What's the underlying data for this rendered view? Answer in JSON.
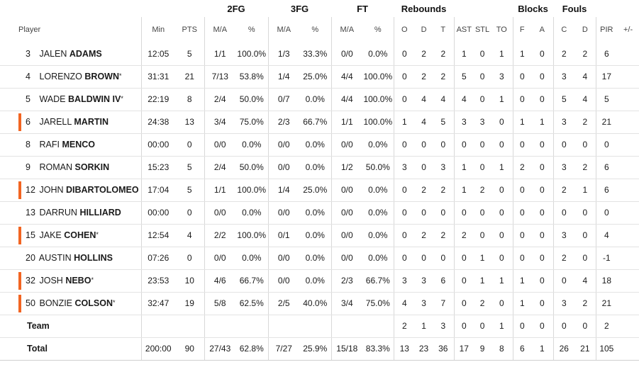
{
  "groups": {
    "fg2": "2FG",
    "fg3": "3FG",
    "ft": "FT",
    "rebounds": "Rebounds",
    "blocks": "Blocks",
    "fouls": "Fouls"
  },
  "columns": {
    "player": "Player",
    "min": "Min",
    "pts": "PTS",
    "fg2_ma": "M/A",
    "fg2_pct": "%",
    "fg3_ma": "M/A",
    "fg3_pct": "%",
    "ft_ma": "M/A",
    "ft_pct": "%",
    "o": "O",
    "d": "D",
    "t": "T",
    "ast": "AST",
    "stl": "STL",
    "to": "TO",
    "blk_f": "F",
    "blk_a": "A",
    "foul_c": "C",
    "foul_d": "D",
    "pir": "PIR",
    "pm": "+/-"
  },
  "players": [
    {
      "num": "3",
      "first": "JALEN",
      "last": "ADAMS",
      "star": "",
      "starter": false,
      "min": "12:05",
      "pts": "5",
      "fg2_ma": "1/1",
      "fg2_pct": "100.0%",
      "fg3_ma": "1/3",
      "fg3_pct": "33.3%",
      "ft_ma": "0/0",
      "ft_pct": "0.0%",
      "o": "0",
      "d": "2",
      "t": "2",
      "ast": "1",
      "stl": "0",
      "to": "1",
      "blk_f": "1",
      "blk_a": "0",
      "foul_c": "2",
      "foul_d": "2",
      "pir": "6",
      "pm": ""
    },
    {
      "num": "4",
      "first": "LORENZO",
      "last": "BROWN",
      "star": "*",
      "starter": false,
      "min": "31:31",
      "pts": "21",
      "fg2_ma": "7/13",
      "fg2_pct": "53.8%",
      "fg3_ma": "1/4",
      "fg3_pct": "25.0%",
      "ft_ma": "4/4",
      "ft_pct": "100.0%",
      "o": "0",
      "d": "2",
      "t": "2",
      "ast": "5",
      "stl": "0",
      "to": "3",
      "blk_f": "0",
      "blk_a": "0",
      "foul_c": "3",
      "foul_d": "4",
      "pir": "17",
      "pm": ""
    },
    {
      "num": "5",
      "first": "WADE",
      "last": "BALDWIN IV",
      "star": "*",
      "starter": false,
      "min": "22:19",
      "pts": "8",
      "fg2_ma": "2/4",
      "fg2_pct": "50.0%",
      "fg3_ma": "0/7",
      "fg3_pct": "0.0%",
      "ft_ma": "4/4",
      "ft_pct": "100.0%",
      "o": "0",
      "d": "4",
      "t": "4",
      "ast": "4",
      "stl": "0",
      "to": "1",
      "blk_f": "0",
      "blk_a": "0",
      "foul_c": "5",
      "foul_d": "4",
      "pir": "5",
      "pm": ""
    },
    {
      "num": "6",
      "first": "JARELL",
      "last": "MARTIN",
      "star": "",
      "starter": true,
      "min": "24:38",
      "pts": "13",
      "fg2_ma": "3/4",
      "fg2_pct": "75.0%",
      "fg3_ma": "2/3",
      "fg3_pct": "66.7%",
      "ft_ma": "1/1",
      "ft_pct": "100.0%",
      "o": "1",
      "d": "4",
      "t": "5",
      "ast": "3",
      "stl": "3",
      "to": "0",
      "blk_f": "1",
      "blk_a": "1",
      "foul_c": "3",
      "foul_d": "2",
      "pir": "21",
      "pm": ""
    },
    {
      "num": "8",
      "first": "RAFI",
      "last": "MENCO",
      "star": "",
      "starter": false,
      "min": "00:00",
      "pts": "0",
      "fg2_ma": "0/0",
      "fg2_pct": "0.0%",
      "fg3_ma": "0/0",
      "fg3_pct": "0.0%",
      "ft_ma": "0/0",
      "ft_pct": "0.0%",
      "o": "0",
      "d": "0",
      "t": "0",
      "ast": "0",
      "stl": "0",
      "to": "0",
      "blk_f": "0",
      "blk_a": "0",
      "foul_c": "0",
      "foul_d": "0",
      "pir": "0",
      "pm": ""
    },
    {
      "num": "9",
      "first": "ROMAN",
      "last": "SORKIN",
      "star": "",
      "starter": false,
      "min": "15:23",
      "pts": "5",
      "fg2_ma": "2/4",
      "fg2_pct": "50.0%",
      "fg3_ma": "0/0",
      "fg3_pct": "0.0%",
      "ft_ma": "1/2",
      "ft_pct": "50.0%",
      "o": "3",
      "d": "0",
      "t": "3",
      "ast": "1",
      "stl": "0",
      "to": "1",
      "blk_f": "2",
      "blk_a": "0",
      "foul_c": "3",
      "foul_d": "2",
      "pir": "6",
      "pm": ""
    },
    {
      "num": "12",
      "first": "JOHN",
      "last": "DIBARTOLOMEO",
      "star": "",
      "starter": true,
      "min": "17:04",
      "pts": "5",
      "fg2_ma": "1/1",
      "fg2_pct": "100.0%",
      "fg3_ma": "1/4",
      "fg3_pct": "25.0%",
      "ft_ma": "0/0",
      "ft_pct": "0.0%",
      "o": "0",
      "d": "2",
      "t": "2",
      "ast": "1",
      "stl": "2",
      "to": "0",
      "blk_f": "0",
      "blk_a": "0",
      "foul_c": "2",
      "foul_d": "1",
      "pir": "6",
      "pm": ""
    },
    {
      "num": "13",
      "first": "DARRUN",
      "last": "HILLIARD",
      "star": "",
      "starter": false,
      "min": "00:00",
      "pts": "0",
      "fg2_ma": "0/0",
      "fg2_pct": "0.0%",
      "fg3_ma": "0/0",
      "fg3_pct": "0.0%",
      "ft_ma": "0/0",
      "ft_pct": "0.0%",
      "o": "0",
      "d": "0",
      "t": "0",
      "ast": "0",
      "stl": "0",
      "to": "0",
      "blk_f": "0",
      "blk_a": "0",
      "foul_c": "0",
      "foul_d": "0",
      "pir": "0",
      "pm": ""
    },
    {
      "num": "15",
      "first": "JAKE",
      "last": "COHEN",
      "star": "*",
      "starter": true,
      "min": "12:54",
      "pts": "4",
      "fg2_ma": "2/2",
      "fg2_pct": "100.0%",
      "fg3_ma": "0/1",
      "fg3_pct": "0.0%",
      "ft_ma": "0/0",
      "ft_pct": "0.0%",
      "o": "0",
      "d": "2",
      "t": "2",
      "ast": "2",
      "stl": "0",
      "to": "0",
      "blk_f": "0",
      "blk_a": "0",
      "foul_c": "3",
      "foul_d": "0",
      "pir": "4",
      "pm": ""
    },
    {
      "num": "20",
      "first": "AUSTIN",
      "last": "HOLLINS",
      "star": "",
      "starter": false,
      "min": "07:26",
      "pts": "0",
      "fg2_ma": "0/0",
      "fg2_pct": "0.0%",
      "fg3_ma": "0/0",
      "fg3_pct": "0.0%",
      "ft_ma": "0/0",
      "ft_pct": "0.0%",
      "o": "0",
      "d": "0",
      "t": "0",
      "ast": "0",
      "stl": "1",
      "to": "0",
      "blk_f": "0",
      "blk_a": "0",
      "foul_c": "2",
      "foul_d": "0",
      "pir": "-1",
      "pm": ""
    },
    {
      "num": "32",
      "first": "JOSH",
      "last": "NEBO",
      "star": "*",
      "starter": true,
      "min": "23:53",
      "pts": "10",
      "fg2_ma": "4/6",
      "fg2_pct": "66.7%",
      "fg3_ma": "0/0",
      "fg3_pct": "0.0%",
      "ft_ma": "2/3",
      "ft_pct": "66.7%",
      "o": "3",
      "d": "3",
      "t": "6",
      "ast": "0",
      "stl": "1",
      "to": "1",
      "blk_f": "1",
      "blk_a": "0",
      "foul_c": "0",
      "foul_d": "4",
      "pir": "18",
      "pm": ""
    },
    {
      "num": "50",
      "first": "BONZIE",
      "last": "COLSON",
      "star": "*",
      "starter": true,
      "min": "32:47",
      "pts": "19",
      "fg2_ma": "5/8",
      "fg2_pct": "62.5%",
      "fg3_ma": "2/5",
      "fg3_pct": "40.0%",
      "ft_ma": "3/4",
      "ft_pct": "75.0%",
      "o": "4",
      "d": "3",
      "t": "7",
      "ast": "0",
      "stl": "2",
      "to": "0",
      "blk_f": "1",
      "blk_a": "0",
      "foul_c": "3",
      "foul_d": "2",
      "pir": "21",
      "pm": ""
    }
  ],
  "team": {
    "label": "Team",
    "min": "",
    "pts": "",
    "fg2_ma": "",
    "fg2_pct": "",
    "fg3_ma": "",
    "fg3_pct": "",
    "ft_ma": "",
    "ft_pct": "",
    "o": "2",
    "d": "1",
    "t": "3",
    "ast": "0",
    "stl": "0",
    "to": "1",
    "blk_f": "0",
    "blk_a": "0",
    "foul_c": "0",
    "foul_d": "0",
    "pir": "2",
    "pm": ""
  },
  "total": {
    "label": "Total",
    "min": "200:00",
    "pts": "90",
    "fg2_ma": "27/43",
    "fg2_pct": "62.8%",
    "fg3_ma": "7/27",
    "fg3_pct": "25.9%",
    "ft_ma": "15/18",
    "ft_pct": "83.3%",
    "o": "13",
    "d": "23",
    "t": "36",
    "ast": "17",
    "stl": "9",
    "to": "8",
    "blk_f": "6",
    "blk_a": "1",
    "foul_c": "26",
    "foul_d": "21",
    "pir": "105",
    "pm": ""
  },
  "colors": {
    "starter_bar": "#f26522",
    "divider": "#d8d8d8",
    "row_border": "#e3e3e3"
  }
}
